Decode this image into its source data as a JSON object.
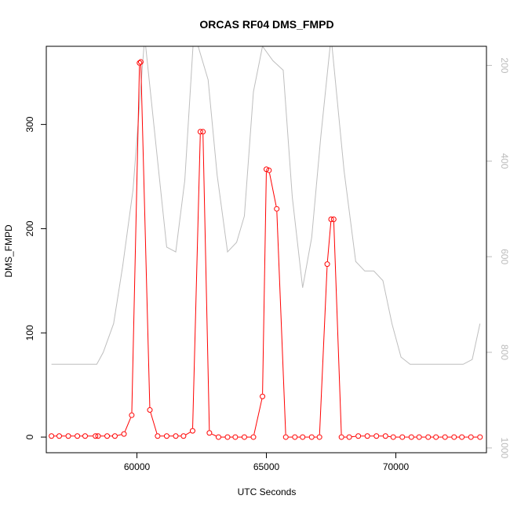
{
  "chart_data": {
    "type": "line",
    "title": "ORCAS RF04 DMS_FMPD",
    "xlabel": "UTC Seconds",
    "ylabel": "DMS_FMPD",
    "xlim": [
      56500,
      73500
    ],
    "ylim": [
      -15,
      375
    ],
    "y2lim": [
      1010,
      160
    ],
    "y2_reversed": true,
    "x_ticks": [
      60000,
      65000,
      70000
    ],
    "y_ticks": [
      0,
      100,
      200,
      300
    ],
    "y2_ticks": [
      200,
      400,
      600,
      800,
      1000
    ],
    "grid": false,
    "series": [
      {
        "axis": "left",
        "color": "#ff0000",
        "style": "points-and-lines",
        "x": [
          56700,
          57000,
          57350,
          57700,
          58000,
          58400,
          58500,
          58850,
          59150,
          59500,
          59800,
          60100,
          60150,
          60500,
          60800,
          61150,
          61500,
          61800,
          62150,
          62450,
          62550,
          62800,
          63150,
          63500,
          63800,
          64150,
          64500,
          64850,
          65000,
          65100,
          65400,
          65750,
          66100,
          66400,
          66750,
          67050,
          67350,
          67500,
          67600,
          67900,
          68200,
          68550,
          68900,
          69250,
          69600,
          69900,
          70250,
          70600,
          70900,
          71250,
          71550,
          71900,
          72250,
          72550,
          72900,
          73250
        ],
        "y": [
          1,
          1,
          1,
          1,
          1,
          1,
          1,
          1,
          1,
          3,
          21,
          359,
          360,
          26,
          1,
          1,
          1,
          1,
          6,
          293,
          293,
          4,
          0,
          0,
          0,
          0,
          0,
          39,
          257,
          256,
          219,
          0,
          0,
          0,
          0,
          0,
          166,
          209,
          209,
          0,
          0,
          1,
          1,
          1,
          1,
          0,
          0,
          0,
          0,
          0,
          0,
          0,
          0,
          0,
          0,
          0
        ]
      },
      {
        "axis": "right",
        "color": "#bebebe",
        "style": "line",
        "x": [
          56700,
          58450,
          58700,
          59100,
          59450,
          59850,
          60300,
          60800,
          61150,
          61500,
          61850,
          62200,
          62750,
          63100,
          63500,
          63850,
          64150,
          64500,
          64850,
          65250,
          65650,
          66000,
          66400,
          66750,
          67100,
          67500,
          68000,
          68450,
          68800,
          69150,
          69500,
          69850,
          70200,
          70550,
          72600,
          72950,
          73250
        ],
        "y": [
          825,
          825,
          800,
          740,
          620,
          460,
          140,
          400,
          580,
          590,
          440,
          130,
          230,
          430,
          590,
          570,
          515,
          255,
          160,
          190,
          210,
          475,
          665,
          560,
          350,
          140,
          420,
          610,
          630,
          630,
          650,
          740,
          810,
          825,
          825,
          815,
          740
        ]
      }
    ]
  }
}
